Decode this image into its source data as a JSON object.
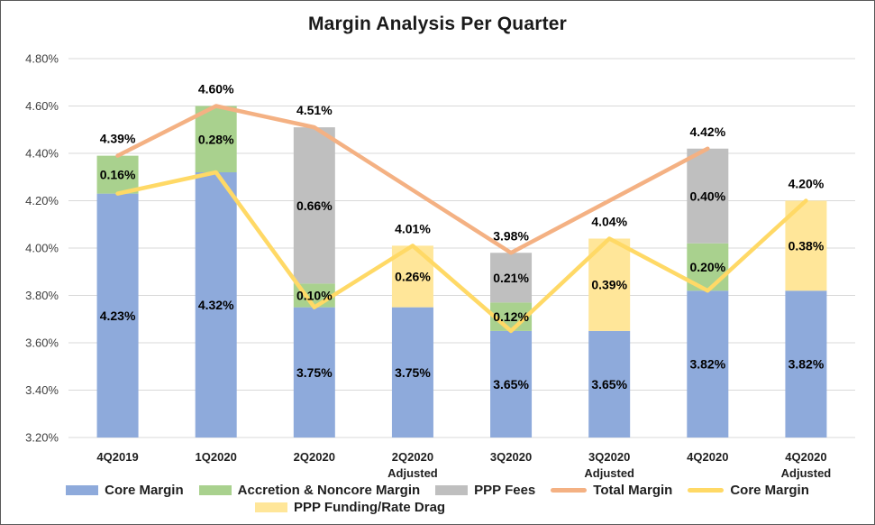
{
  "title": "Margin Analysis Per Quarter",
  "chart_data": {
    "type": "combo-stacked-bar-line",
    "title": "Margin Analysis Per Quarter",
    "categories": [
      "4Q2019",
      "1Q2020",
      "2Q2020",
      "2Q2020",
      "3Q2020",
      "3Q2020",
      "4Q2020",
      "4Q2020"
    ],
    "category_sublabels": [
      "",
      "",
      "",
      "Adjusted",
      "",
      "Adjusted",
      "",
      "Adjusted"
    ],
    "y_axis": {
      "min": 3.2,
      "max": 4.8,
      "step": 0.2,
      "grid": true,
      "tick_labels": [
        "4.80%",
        "4.60%",
        "4.40%",
        "4.20%",
        "4.00%",
        "3.80%",
        "3.60%",
        "3.40%",
        "3.20%"
      ]
    },
    "bar_series": [
      {
        "name": "Core Margin",
        "color": "#8EAADB",
        "values": [
          4.23,
          4.32,
          3.75,
          3.75,
          3.65,
          3.65,
          3.82,
          3.82
        ],
        "labels": [
          "4.23%",
          "4.32%",
          "3.75%",
          "3.75%",
          "3.65%",
          "3.65%",
          "3.82%",
          "3.82%"
        ]
      },
      {
        "name": "Accretion & Noncore Margin",
        "color": "#A9D18E",
        "values": [
          0.16,
          0.28,
          0.1,
          null,
          0.12,
          null,
          0.2,
          null
        ],
        "labels": [
          "0.16%",
          "0.28%",
          "0.10%",
          null,
          "0.12%",
          null,
          "0.20%",
          null
        ]
      },
      {
        "name": "PPP Fees",
        "color": "#BFBFBF",
        "values": [
          null,
          null,
          0.66,
          null,
          0.21,
          null,
          0.4,
          null
        ],
        "labels": [
          null,
          null,
          "0.66%",
          null,
          "0.21%",
          null,
          "0.40%",
          null
        ]
      },
      {
        "name": "PPP Funding/Rate Drag",
        "color": "#FFE699",
        "values": [
          null,
          null,
          null,
          0.26,
          null,
          0.39,
          null,
          0.38
        ],
        "labels": [
          null,
          null,
          null,
          "0.26%",
          null,
          "0.39%",
          null,
          "0.38%"
        ]
      }
    ],
    "line_series": [
      {
        "name": "Total Margin",
        "color": "#F4B183",
        "values": [
          4.39,
          4.6,
          4.51,
          null,
          3.98,
          null,
          4.42,
          null
        ]
      },
      {
        "name": "Core Margin",
        "color": "#FFD966",
        "values": [
          4.23,
          4.32,
          3.75,
          4.01,
          3.65,
          4.04,
          3.82,
          4.2
        ]
      }
    ],
    "total_labels": [
      "4.39%",
      "4.60%",
      "4.51%",
      "4.01%",
      "3.98%",
      "4.04%",
      "4.42%",
      "4.20%"
    ]
  },
  "legend": {
    "rows": [
      [
        {
          "label": "Core Margin",
          "swatch": "rect",
          "color": "#8EAADB"
        },
        {
          "label": "Accretion & Noncore Margin",
          "swatch": "rect",
          "color": "#A9D18E"
        },
        {
          "label": "PPP Fees",
          "swatch": "rect",
          "color": "#BFBFBF"
        },
        {
          "label": "Total Margin",
          "swatch": "line",
          "color": "#F4B183"
        },
        {
          "label": "Core Margin",
          "swatch": "line",
          "color": "#FFD966"
        }
      ],
      [
        {
          "label": "PPP Funding/Rate Drag",
          "swatch": "rect",
          "color": "#FFE699"
        }
      ]
    ]
  }
}
